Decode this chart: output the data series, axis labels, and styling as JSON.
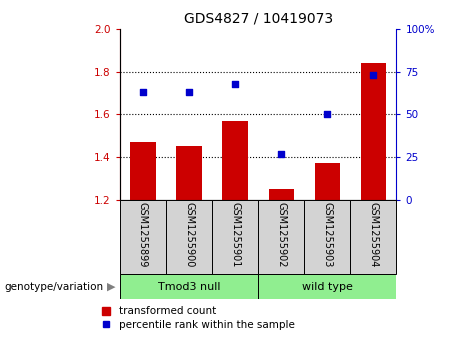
{
  "title": "GDS4827 / 10419073",
  "samples": [
    "GSM1255899",
    "GSM1255900",
    "GSM1255901",
    "GSM1255902",
    "GSM1255903",
    "GSM1255904"
  ],
  "bar_values": [
    1.47,
    1.45,
    1.57,
    1.25,
    1.37,
    1.84
  ],
  "dot_values": [
    63,
    63,
    68,
    27,
    50,
    73
  ],
  "bar_color": "#cc0000",
  "dot_color": "#0000cc",
  "ylim_left": [
    1.2,
    2.0
  ],
  "ylim_right": [
    0,
    100
  ],
  "yticks_left": [
    1.2,
    1.4,
    1.6,
    1.8,
    2.0
  ],
  "yticks_right": [
    0,
    25,
    50,
    75,
    100
  ],
  "ytick_labels_right": [
    "0",
    "25",
    "50",
    "75",
    "100%"
  ],
  "group1_label": "Tmod3 null",
  "group2_label": "wild type",
  "group1_indices": [
    0,
    1,
    2
  ],
  "group2_indices": [
    3,
    4,
    5
  ],
  "group_color": "#90ee90",
  "sample_box_color": "#d3d3d3",
  "genotype_label": "genotype/variation",
  "legend_bar_label": "transformed count",
  "legend_dot_label": "percentile rank within the sample",
  "bar_width": 0.55,
  "baseline": 1.2,
  "title_fontsize": 10,
  "tick_fontsize": 7.5,
  "sample_fontsize": 7,
  "group_fontsize": 8,
  "legend_fontsize": 7.5
}
